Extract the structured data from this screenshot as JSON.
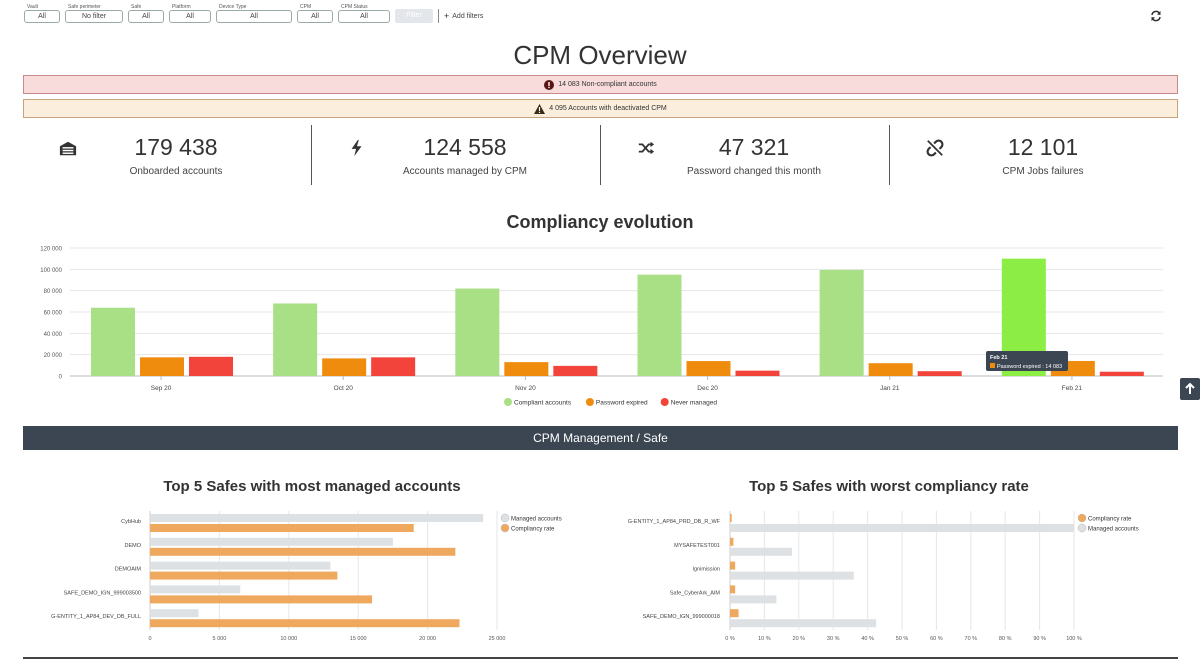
{
  "filters": [
    {
      "label": "Vault",
      "value": "All"
    },
    {
      "label": "Safe perimeter",
      "value": "No filter"
    },
    {
      "label": "Safe",
      "value": "All"
    },
    {
      "label": "Platform",
      "value": "All"
    },
    {
      "label": "Device Type",
      "value": "All"
    },
    {
      "label": "CPM",
      "value": "All"
    },
    {
      "label": "CPM Status",
      "value": "All"
    }
  ],
  "filter_apply_label": "Filter",
  "add_filters_label": "Add filters",
  "page_title": "CPM Overview",
  "alerts": {
    "danger": "14 083 Non-compliant accounts",
    "warning": "4 095 Accounts with deactivated CPM"
  },
  "kpis": [
    {
      "value": "179 438",
      "label": "Onboarded accounts",
      "icon": "vault-icon"
    },
    {
      "value": "124 558",
      "label": "Accounts managed by CPM",
      "icon": "bolt-icon"
    },
    {
      "value": "47 321",
      "label": "Password changed this month",
      "icon": "shuffle-icon"
    },
    {
      "value": "12 101",
      "label": "CPM Jobs failures",
      "icon": "unlink-icon"
    }
  ],
  "compliancy_title": "Compliancy evolution",
  "section_bar": "CPM Management / Safe",
  "top_managed_title": "Top 5 Safes with most managed accounts",
  "worst_compliancy_title": "Top 5 Safes with worst compliancy rate",
  "tooltip": {
    "title": "Feb 21",
    "text": "Password expired : 14 083"
  },
  "colors": {
    "compliant": "#a9df85",
    "compliant_hover": "#8cee45",
    "expired": "#f08c0d",
    "never": "#f2443a",
    "managed": "#dde1e4",
    "rate": "#efa95e",
    "dark": "#3b4652"
  },
  "chart_data": [
    {
      "type": "bar",
      "title": "Compliancy evolution",
      "categories": [
        "Sep 20",
        "Oct 20",
        "Nov 20",
        "Dec 20",
        "Jan 21",
        "Feb 21"
      ],
      "series": [
        {
          "name": "Compliant accounts",
          "values": [
            64000,
            68000,
            82000,
            95000,
            99500,
            110000
          ]
        },
        {
          "name": "Password expired",
          "values": [
            17500,
            16500,
            13000,
            14000,
            12000,
            14083
          ]
        },
        {
          "name": "Never managed",
          "values": [
            18000,
            17500,
            9500,
            5000,
            4500,
            4000
          ]
        }
      ],
      "ylim": [
        0,
        120000
      ],
      "yticks": [
        "0",
        "20 000",
        "40 000",
        "60 000",
        "80 000",
        "100 000",
        "120 000"
      ],
      "legend": "bottom",
      "grid": true
    },
    {
      "type": "bar",
      "orientation": "horizontal",
      "title": "Top 5 Safes with most managed accounts",
      "categories": [
        "CybHub",
        "DEMO",
        "DEMOAIM",
        "SAFE_DEMO_IGN_999003500",
        "G-ENTITY_1_AP84_DEV_DB_FULL"
      ],
      "series": [
        {
          "name": "Managed accounts",
          "values": [
            24000,
            17500,
            13000,
            6500,
            3500
          ]
        },
        {
          "name": "Compliancy rate",
          "values": [
            19000,
            22000,
            13500,
            16000,
            22300
          ]
        }
      ],
      "xlim": [
        0,
        25000
      ],
      "xticks": [
        "0",
        "5 000",
        "10 000",
        "15 000",
        "20 000",
        "25 000"
      ],
      "legend": "top-right"
    },
    {
      "type": "bar",
      "orientation": "horizontal",
      "title": "Top 5 Safes with worst compliancy rate",
      "categories": [
        "G-ENTITY_1_AP84_PRD_DB_R_WF",
        "MYSAFETEST001",
        "Ignimission",
        "Safe_CyberArk_AIM",
        "SAFE_DEMO_IGN_999000018"
      ],
      "series": [
        {
          "name": "Compliancy rate",
          "values": [
            0.5,
            1,
            1.5,
            1.5,
            2.5
          ]
        },
        {
          "name": "Managed accounts",
          "values": [
            100,
            18,
            36,
            13.5,
            42.5
          ]
        }
      ],
      "xlim": [
        0,
        100
      ],
      "xticks": [
        "0 %",
        "10 %",
        "20 %",
        "30 %",
        "40 %",
        "50 %",
        "60 %",
        "70 %",
        "80 %",
        "90 %",
        "100 %"
      ],
      "legend": "top-right"
    }
  ]
}
